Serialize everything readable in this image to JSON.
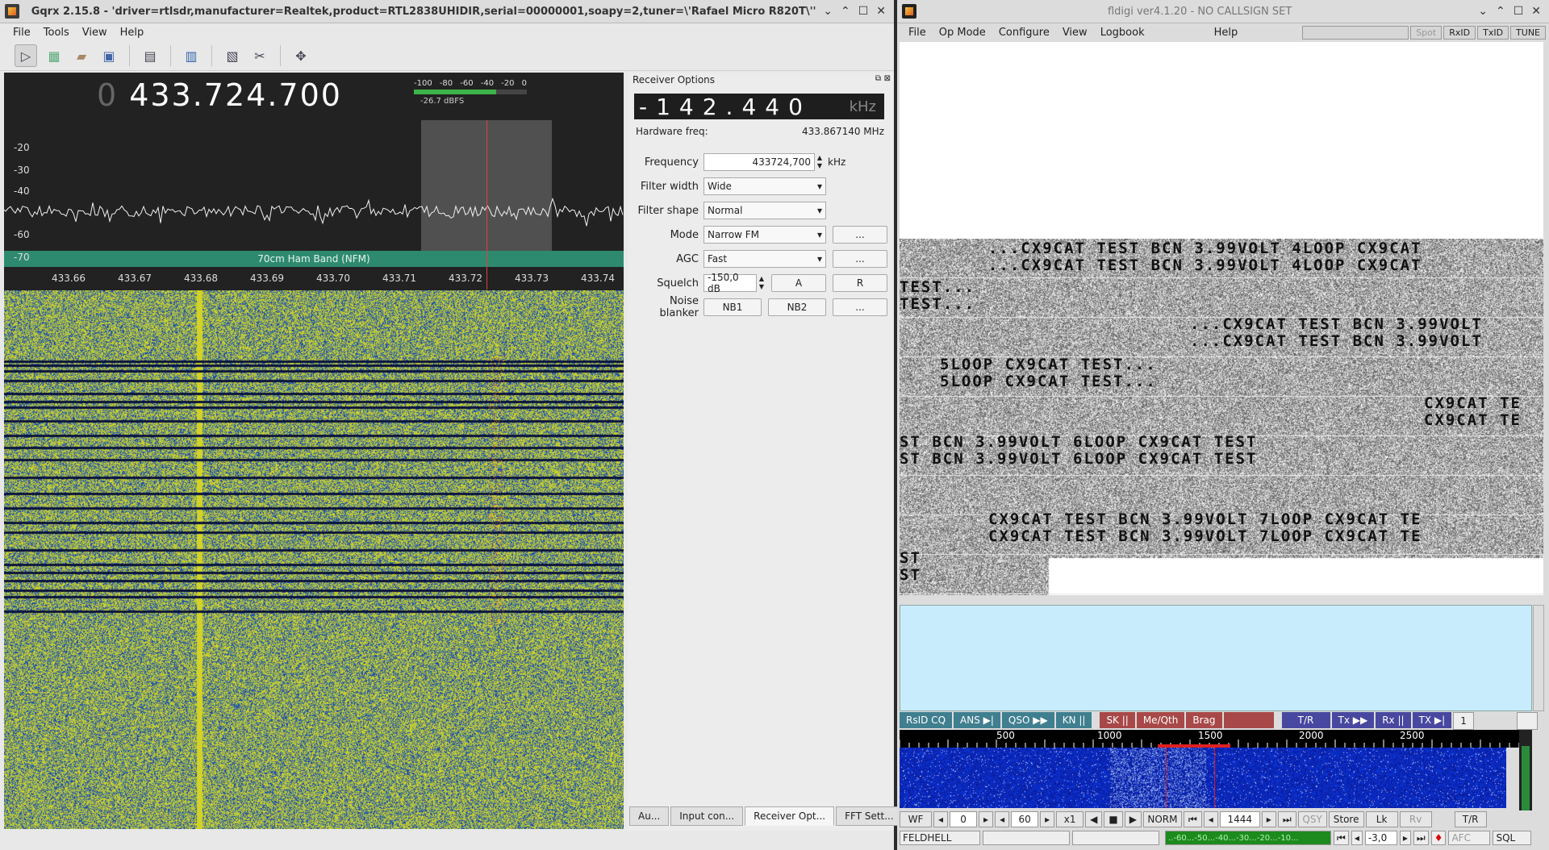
{
  "gqrx": {
    "title": "Gqrx 2.15.8 - 'driver=rtlsdr,manufacturer=Realtek,product=RTL2838UHIDIR,serial=00000001,soapy=2,tuner=\\'Rafael Micro R820T\\''",
    "menu": [
      "File",
      "Tools",
      "View",
      "Help"
    ],
    "frequency_prefix": "0",
    "frequency": "433.724.700",
    "band_label": "70cm Ham Band (NFM)",
    "x_ticks": [
      "433.66",
      "433.67",
      "433.68",
      "433.69",
      "433.70",
      "433.71",
      "433.72",
      "433.73",
      "433.74"
    ],
    "y_ticks": [
      "-20",
      "-30",
      "-40",
      "-60",
      "-70"
    ],
    "meter_ticks": [
      "-100",
      "-80",
      "-60",
      "-40",
      "-20",
      "0"
    ],
    "meter_level_fraction": 0.73,
    "meter_label": "-26.7 dBFS",
    "receiver_options": {
      "header": "Receiver Options",
      "offset": "-142.440",
      "offset_unit": "kHz",
      "hw_label": "Hardware freq:",
      "hw_value": "433.867140 MHz",
      "frequency_label": "Frequency",
      "frequency_value": "433724,700",
      "frequency_unit": "kHz",
      "filter_width_label": "Filter width",
      "filter_width_value": "Wide",
      "filter_shape_label": "Filter shape",
      "filter_shape_value": "Normal",
      "mode_label": "Mode",
      "mode_value": "Narrow FM",
      "agc_label": "AGC",
      "agc_value": "Fast",
      "squelch_label": "Squelch",
      "squelch_value": "-150,0 dB",
      "noise_label": "Noise blanker",
      "more": "...",
      "btn_a": "A",
      "btn_r": "R",
      "nb1": "NB1",
      "nb2": "NB2"
    },
    "tabs": [
      "Au...",
      "Input con...",
      "Receiver Opt...",
      "FFT Sett..."
    ]
  },
  "fldigi": {
    "title": "fldigi ver4.1.20 - NO CALLSIGN SET",
    "menu": [
      "File",
      "Op Mode",
      "Configure",
      "View",
      "Logbook",
      "Help"
    ],
    "toggles": [
      "Spot",
      "RxID",
      "TxID",
      "TUNE"
    ],
    "hell_lines": [
      "...CX9CAT TEST BCN 3.99VOLT   4LOOP CX9CAT",
      "TEST...",
      "...CX9CAT TEST BCN 3.99VOLT",
      "5LOOP CX9CAT TEST...",
      "CX9CAT TE",
      "ST BCN 3.99VOLT   6LOOP CX9CAT TEST",
      "",
      "CX9CAT TEST BCN 3.99VOLT   7LOOP CX9CAT TE",
      "ST"
    ],
    "macros": [
      "RsID CQ",
      "ANS ▶|",
      "QSO ▶▶",
      "KN ||",
      "SK ||",
      "Me/Qth",
      "Brag",
      "",
      "T/R",
      "Tx ▶▶",
      "Rx ||",
      "TX ▶|"
    ],
    "macro_index": "1",
    "wf_scale": [
      "500",
      "1000",
      "1500",
      "2000",
      "2500"
    ],
    "controls": {
      "wf": "WF",
      "v0": "0",
      "v60": "60",
      "x1": "x1",
      "norm": "NORM",
      "freq": "1444",
      "qsy": "QSY",
      "store": "Store",
      "lk": "Lk",
      "rv": "Rv",
      "tr": "T/R"
    },
    "status": {
      "mode": "FELDHELL",
      "scale": "..-60...-50...-40...-30...-20...-10...",
      "val": "-3,0",
      "afc": "AFC",
      "sql": "SQL"
    }
  }
}
